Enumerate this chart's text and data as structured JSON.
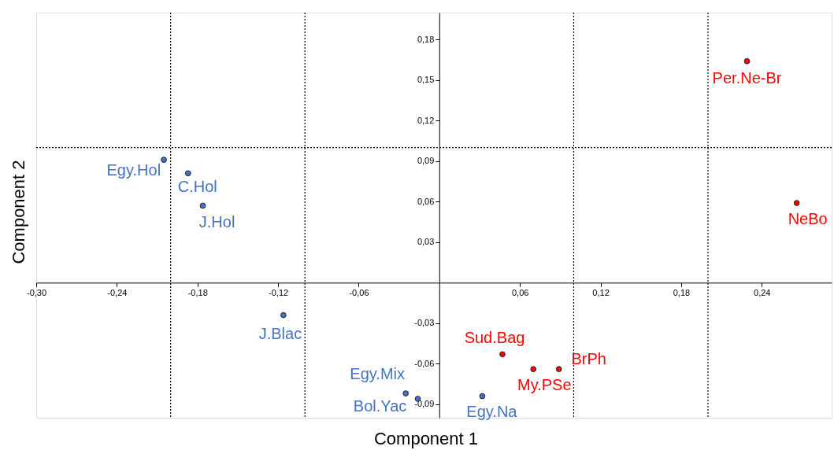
{
  "chart_data": {
    "type": "scatter",
    "xlabel": "Component 1",
    "ylabel": "Component 2",
    "marker": "circle",
    "grid": false,
    "xlim": [
      -0.3,
      0.292
    ],
    "ylim": [
      -0.1,
      0.2
    ],
    "xticks": [
      {
        "value": -0.3,
        "label": "-0,30"
      },
      {
        "value": -0.24,
        "label": "-0,24"
      },
      {
        "value": -0.18,
        "label": "-0,18"
      },
      {
        "value": -0.12,
        "label": "-0,12"
      },
      {
        "value": -0.06,
        "label": "-0,06"
      },
      {
        "value": 0.06,
        "label": "0,06"
      },
      {
        "value": 0.12,
        "label": "0,12"
      },
      {
        "value": 0.18,
        "label": "0,18"
      },
      {
        "value": 0.24,
        "label": "0,24"
      }
    ],
    "yticks": [
      {
        "value": -0.09,
        "label": "-0,09"
      },
      {
        "value": -0.06,
        "label": "-0,06"
      },
      {
        "value": -0.03,
        "label": "-0,03"
      },
      {
        "value": 0.03,
        "label": "0,03"
      },
      {
        "value": 0.06,
        "label": "0,06"
      },
      {
        "value": 0.09,
        "label": "0,09"
      },
      {
        "value": 0.12,
        "label": "0,12"
      },
      {
        "value": 0.15,
        "label": "0,15"
      },
      {
        "value": 0.18,
        "label": "0,18"
      }
    ],
    "series": [
      {
        "color": "#4472c4",
        "x": [
          -0.205,
          -0.187,
          -0.176,
          -0.116,
          -0.025,
          -0.016,
          0.032
        ],
        "values": [
          0.091,
          0.081,
          0.057,
          -0.024,
          -0.082,
          -0.086,
          -0.084
        ]
      },
      {
        "color": "#ff0000",
        "x": [
          0.229,
          0.266,
          0.047,
          0.07,
          0.089
        ],
        "values": [
          0.164,
          0.059,
          -0.053,
          -0.064,
          -0.064
        ]
      }
    ],
    "annotations": [
      {
        "text": "Egy.Hol",
        "x": -0.205,
        "y": 0.091
      },
      {
        "text": "C.Hol",
        "x": -0.187,
        "y": 0.081
      },
      {
        "text": "J.Hol",
        "x": -0.176,
        "y": 0.057
      },
      {
        "text": "J.Blac",
        "x": -0.116,
        "y": -0.024
      },
      {
        "text": "Egy.Mix",
        "x": -0.025,
        "y": -0.082
      },
      {
        "text": "Bol.Yac",
        "x": -0.016,
        "y": -0.086
      },
      {
        "text": "Egy.Na",
        "x": 0.032,
        "y": -0.084
      },
      {
        "text": "Per.Ne-Br",
        "x": 0.229,
        "y": 0.164
      },
      {
        "text": "NeBo",
        "x": 0.266,
        "y": 0.059
      },
      {
        "text": "Sud.Bag",
        "x": 0.047,
        "y": -0.053
      },
      {
        "text": "My.PSe",
        "x": 0.07,
        "y": -0.064
      },
      {
        "text": "BrPh",
        "x": 0.089,
        "y": -0.064
      }
    ],
    "ref_lines": [
      {
        "axis": "x",
        "value": -0.2,
        "line_style": "dotted"
      },
      {
        "axis": "x",
        "value": -0.1,
        "line_style": "dotted"
      },
      {
        "axis": "x",
        "value": 0.1,
        "line_style": "dotted"
      },
      {
        "axis": "x",
        "value": 0.2,
        "line_style": "dotted"
      },
      {
        "axis": "y",
        "value": 0.1,
        "line_style": "dotted"
      }
    ]
  }
}
